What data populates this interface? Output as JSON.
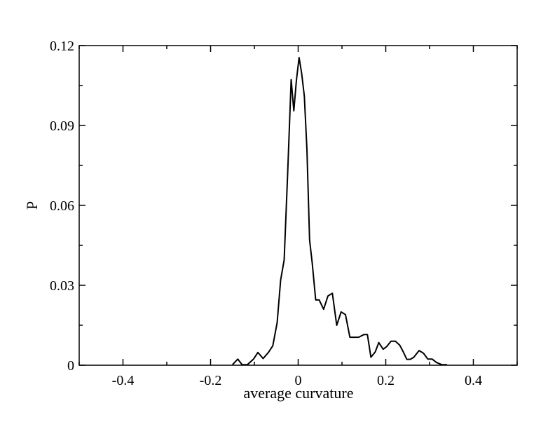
{
  "chart_data": {
    "type": "line",
    "title": "",
    "xlabel": "average curvature",
    "ylabel": "P",
    "xlim": [
      -0.5,
      0.5
    ],
    "ylim": [
      0,
      0.12
    ],
    "grid": false,
    "x_ticks": [
      -0.4,
      -0.2,
      0,
      0.2,
      0.4
    ],
    "x_tick_labels": [
      "-0.4",
      "-0.2",
      "0",
      "0.2",
      "0.4"
    ],
    "y_ticks": [
      0,
      0.03,
      0.06,
      0.09,
      0.12
    ],
    "y_tick_labels": [
      "0",
      "0.03",
      "0.06",
      "0.09",
      "0.12"
    ],
    "line_color": "#000000",
    "series": [
      {
        "x": [
          -0.15,
          -0.138,
          -0.128,
          -0.116,
          -0.102,
          -0.092,
          -0.08,
          -0.068,
          -0.058,
          -0.048,
          -0.04,
          -0.032,
          -0.024,
          -0.016,
          -0.01,
          -0.004,
          0.002,
          0.008,
          0.014,
          0.02,
          0.026,
          0.032,
          0.04,
          0.048,
          0.058,
          0.068,
          0.078,
          0.088,
          0.098,
          0.108,
          0.118,
          0.126,
          0.138,
          0.15,
          0.158,
          0.166,
          0.176,
          0.184,
          0.194,
          0.202,
          0.212,
          0.222,
          0.232,
          0.24,
          0.248,
          0.256,
          0.264,
          0.276,
          0.286,
          0.296,
          0.306,
          0.316,
          0.328,
          0.34
        ],
        "y": [
          0.0002,
          0.0023,
          0.0002,
          0.0002,
          0.0023,
          0.0048,
          0.0025,
          0.0048,
          0.0073,
          0.016,
          0.032,
          0.0395,
          0.072,
          0.1072,
          0.0955,
          0.107,
          0.1155,
          0.1095,
          0.101,
          0.081,
          0.047,
          0.0385,
          0.0245,
          0.0245,
          0.021,
          0.026,
          0.027,
          0.015,
          0.02,
          0.019,
          0.0105,
          0.0105,
          0.0105,
          0.0115,
          0.0115,
          0.003,
          0.005,
          0.0085,
          0.006,
          0.007,
          0.009,
          0.009,
          0.0075,
          0.005,
          0.0022,
          0.0022,
          0.003,
          0.0055,
          0.0045,
          0.0023,
          0.0023,
          0.001,
          0.0002,
          0.0002
        ]
      }
    ]
  }
}
